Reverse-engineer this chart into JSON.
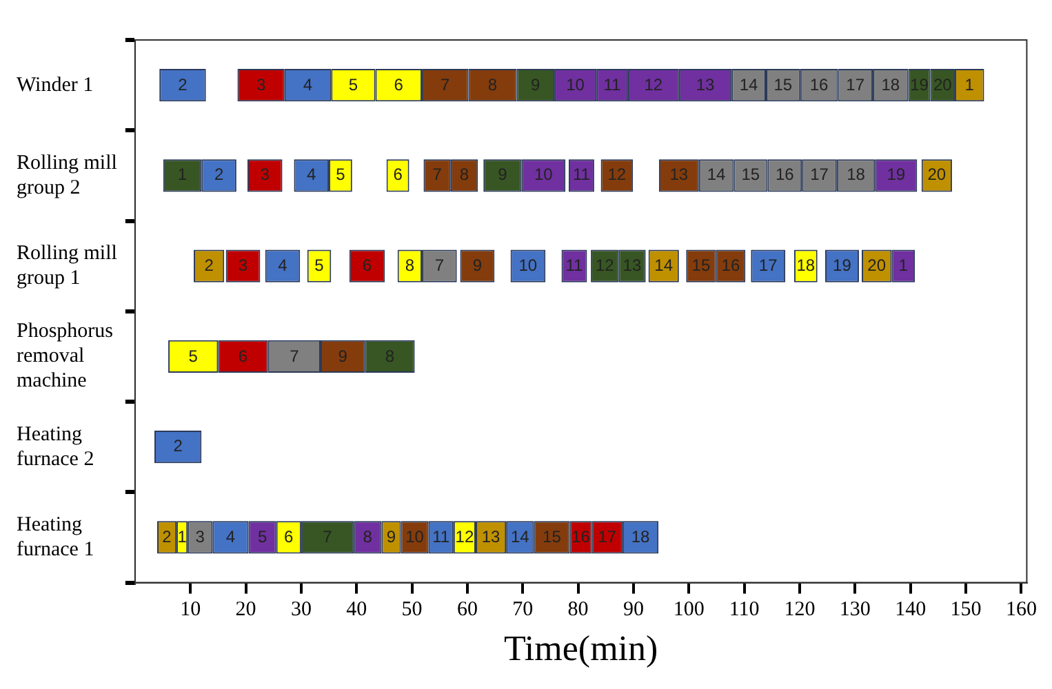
{
  "chart_data": {
    "type": "bar",
    "orientation": "horizontal",
    "xlabel": "Time(min)",
    "categories": [
      "Winder 1",
      "Rolling mill group 2",
      "Rolling mill group 1",
      "Phosphorus removal machine",
      "Heating furnace 2",
      "Heating furnace 1"
    ],
    "xlim": [
      0,
      161
    ],
    "xticks": [
      10,
      20,
      30,
      40,
      50,
      60,
      70,
      80,
      90,
      100,
      110,
      120,
      130,
      140,
      150,
      160
    ],
    "series": [
      {
        "name": "1",
        "base": [
          148.0,
          5.1,
          136.6,
          null,
          null,
          7.5
        ],
        "values": [
          5.3,
          6.9,
          4.2,
          null,
          null,
          2
        ],
        "colors": [
          "#bf9000",
          "#375623",
          "#7030a0",
          null,
          null,
          "#ffff00"
        ]
      },
      {
        "name": "2",
        "base": [
          4.4,
          12.0,
          10.6,
          null,
          3.5,
          4
        ],
        "values": [
          8.4,
          6.3,
          5.5,
          null,
          8.5,
          3.5
        ],
        "colors": [
          "#4472c4",
          "#4472c4",
          "#bf9000",
          null,
          "#4472c4",
          "#bf9000"
        ]
      },
      {
        "name": "3",
        "base": [
          18.5,
          20.3,
          16.4,
          null,
          null,
          9.5
        ],
        "values": [
          8.5,
          6.3,
          6.2,
          null,
          null,
          4.5
        ],
        "colors": [
          "#c00000",
          "#c00000",
          "#c00000",
          null,
          null,
          "#808080"
        ]
      },
      {
        "name": "4",
        "base": [
          27.0,
          28.7,
          23.5,
          null,
          null,
          14
        ],
        "values": [
          8.4,
          6.3,
          6.3,
          null,
          null,
          6.5
        ],
        "colors": [
          "#4472c4",
          "#4472c4",
          "#4472c4",
          null,
          null,
          "#4472c4"
        ]
      },
      {
        "name": "5",
        "base": [
          35.4,
          35.0,
          31.1,
          6,
          null,
          20.5
        ],
        "values": [
          8.0,
          4.2,
          4.3,
          9,
          null,
          5
        ],
        "colors": [
          "#ffff00",
          "#ffff00",
          "#ffff00",
          "#ffff00",
          null,
          "#7030a0"
        ]
      },
      {
        "name": "6",
        "base": [
          43.4,
          45.4,
          38.7,
          15,
          null,
          25.5
        ],
        "values": [
          8.4,
          4.1,
          6.4,
          9,
          null,
          4.5
        ],
        "colors": [
          "#ffff00",
          "#ffff00",
          "#c00000",
          "#c00000",
          null,
          "#ffff00"
        ]
      },
      {
        "name": "7",
        "base": [
          51.8,
          52.1,
          51.8,
          24,
          null,
          30
        ],
        "values": [
          8.4,
          4.9,
          6.3,
          9.5,
          null,
          9.5
        ],
        "colors": [
          "#843c0c",
          "#843c0c",
          "#808080",
          "#808080",
          null,
          "#375623"
        ]
      },
      {
        "name": "8",
        "base": [
          60.2,
          57.0,
          47.4,
          41.5,
          null,
          39.5
        ],
        "values": [
          8.7,
          4.9,
          4.4,
          9,
          null,
          5
        ],
        "colors": [
          "#843c0c",
          "#843c0c",
          "#ffff00",
          "#375623",
          null,
          "#7030a0"
        ]
      },
      {
        "name": "9",
        "base": [
          68.9,
          62.9,
          58.7,
          33.5,
          null,
          44.5
        ],
        "values": [
          6.8,
          6.9,
          6.2,
          8,
          null,
          3.5
        ],
        "colors": [
          "#375623",
          "#375623",
          "#843c0c",
          "#843c0c",
          null,
          "#bf9000"
        ]
      },
      {
        "name": "10",
        "base": [
          75.7,
          69.8,
          67.8,
          null,
          null,
          48
        ],
        "values": [
          7.6,
          7.9,
          6.3,
          null,
          null,
          5
        ],
        "colors": [
          "#7030a0",
          "#7030a0",
          "#4472c4",
          null,
          null,
          "#843c0c"
        ]
      },
      {
        "name": "11",
        "base": [
          83.3,
          78.3,
          77.0,
          null,
          null,
          53
        ],
        "values": [
          5.7,
          4.6,
          4.6,
          null,
          null,
          4.5
        ],
        "colors": [
          "#7030a0",
          "#7030a0",
          "#7030a0",
          null,
          null,
          "#4472c4"
        ]
      },
      {
        "name": "12",
        "base": [
          89.0,
          84.1,
          82.3,
          null,
          null,
          57.5
        ],
        "values": [
          9.2,
          5.8,
          5.0,
          null,
          null,
          4
        ],
        "colors": [
          "#7030a0",
          "#843c0c",
          "#375623",
          null,
          null,
          "#ffff00"
        ]
      },
      {
        "name": "13",
        "base": [
          98.2,
          94.6,
          87.3,
          null,
          null,
          61.5
        ],
        "values": [
          9.5,
          7.2,
          4.9,
          null,
          null,
          5.5
        ],
        "colors": [
          "#7030a0",
          "#843c0c",
          "#375623",
          null,
          null,
          "#bf9000"
        ]
      },
      {
        "name": "14",
        "base": [
          107.7,
          101.8,
          92.7,
          null,
          null,
          67
        ],
        "values": [
          6.2,
          6.3,
          5.5,
          null,
          null,
          5
        ],
        "colors": [
          "#808080",
          "#808080",
          "#bf9000",
          null,
          null,
          "#4472c4"
        ]
      },
      {
        "name": "15",
        "base": [
          113.9,
          108.1,
          99.5,
          null,
          null,
          72
        ],
        "values": [
          6.2,
          6.1,
          5.4,
          null,
          null,
          6.5
        ],
        "colors": [
          "#808080",
          "#808080",
          "#843c0c",
          null,
          null,
          "#843c0c"
        ]
      },
      {
        "name": "16",
        "base": [
          120.1,
          114.2,
          104.9,
          null,
          null,
          78.5
        ],
        "values": [
          6.8,
          6.2,
          5.3,
          null,
          null,
          4
        ],
        "colors": [
          "#808080",
          "#808080",
          "#843c0c",
          null,
          null,
          "#c00000"
        ]
      },
      {
        "name": "17",
        "base": [
          126.9,
          120.4,
          111.2,
          null,
          null,
          82.5
        ],
        "values": [
          6.3,
          6.3,
          6.2,
          null,
          null,
          5.5
        ],
        "colors": [
          "#808080",
          "#808080",
          "#4472c4",
          null,
          null,
          "#c00000"
        ]
      },
      {
        "name": "18",
        "base": [
          133.2,
          126.7,
          119.0,
          null,
          null,
          88
        ],
        "values": [
          6.4,
          6.9,
          4.2,
          null,
          null,
          6.5
        ],
        "colors": [
          "#808080",
          "#808080",
          "#ffff00",
          null,
          null,
          "#4472c4"
        ]
      },
      {
        "name": "19",
        "base": [
          139.6,
          133.6,
          124.6,
          null,
          null,
          null
        ],
        "values": [
          4.0,
          7.6,
          6.1,
          null,
          null,
          null
        ],
        "colors": [
          "#375623",
          "#7030a0",
          "#4472c4",
          null,
          null,
          null
        ]
      },
      {
        "name": "20",
        "base": [
          143.6,
          142.0,
          131.2,
          null,
          null,
          null
        ],
        "values": [
          4.4,
          5.5,
          5.4,
          null,
          null,
          null
        ],
        "colors": [
          "#375623",
          "#bf9000",
          "#bf9000",
          null,
          null,
          null
        ]
      }
    ]
  }
}
